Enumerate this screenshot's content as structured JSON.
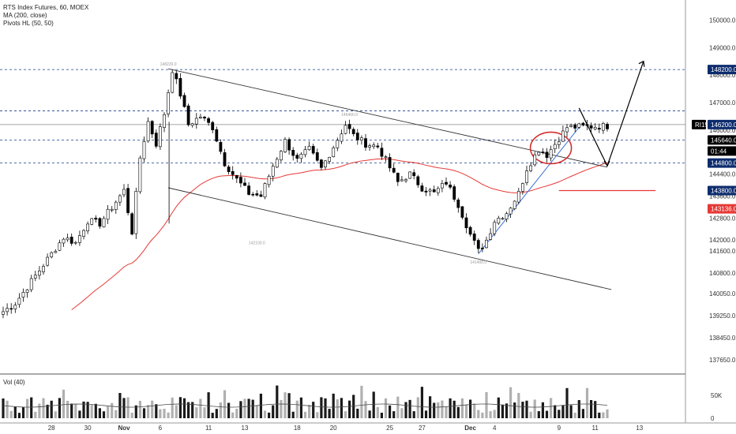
{
  "legend": {
    "symbol": "RTS Index Futures, 60, MOEX",
    "ma": "MA (200, close)",
    "pivots": "Pivots HL (50, 50)"
  },
  "volume_label": "Vol (40)",
  "colors": {
    "up": "#ffffff",
    "down": "#000000",
    "ma": "#e53935",
    "dashed": "#1a3a8c",
    "price_tag": "#0d2c6e",
    "red_tag": "#e53935",
    "trendline": "#3a6fd8"
  },
  "chart_data": {
    "type": "candlestick",
    "price_axis": {
      "ticks": [
        "150000.0",
        "149000.0",
        "148000.0",
        "147000.0",
        "146000.0",
        "145200.0",
        "144400.0",
        "143600.0",
        "142800.0",
        "142000.0",
        "141600.0",
        "140800.0",
        "140050.0",
        "139250.0",
        "138450.0",
        "137650.0"
      ],
      "range": [
        137300,
        150500
      ]
    },
    "time_axis": {
      "ticks": [
        "28",
        "30",
        "Nov",
        "6",
        "11",
        "13",
        "18",
        "20",
        "25",
        "27",
        "Dec",
        "4",
        "9",
        "11",
        "13"
      ]
    },
    "volume_axis": {
      "ticks": [
        "50K",
        "0"
      ]
    },
    "horizontal_levels": [
      148200,
      146700,
      145640,
      144800
    ],
    "price_tags": [
      {
        "label": "148200.0",
        "value": 148200,
        "style": "blue"
      },
      {
        "label": "146200.0",
        "value": 146200,
        "style": "blue"
      },
      {
        "label": "RI1!",
        "value": 146200,
        "style": "symbol"
      },
      {
        "label": "145640.0",
        "value": 145640,
        "style": "dark"
      },
      {
        "label": "01:44",
        "value": 145350,
        "style": "dark"
      },
      {
        "label": "144800.0",
        "value": 144800,
        "style": "blue"
      },
      {
        "label": "143800.0",
        "value": 143800,
        "style": "blue"
      },
      {
        "label": "143136.0",
        "value": 143136,
        "style": "red"
      }
    ],
    "pivot_labels": [
      {
        "label": "148229.0",
        "x_index": 41,
        "value": 148229,
        "pos": "above"
      },
      {
        "label": "146400.0",
        "x_index": 86,
        "value": 146400,
        "pos": "above"
      },
      {
        "label": "142100.0",
        "x_index": 63,
        "value": 142100,
        "pos": "below"
      },
      {
        "label": "141400.0",
        "x_index": 118,
        "value": 141400,
        "pos": "below"
      }
    ],
    "waypoints": [
      [
        0,
        139400
      ],
      [
        3,
        139700
      ],
      [
        6,
        140300
      ],
      [
        9,
        140900
      ],
      [
        12,
        141500
      ],
      [
        15,
        142100
      ],
      [
        18,
        141900
      ],
      [
        21,
        142700
      ],
      [
        24,
        142600
      ],
      [
        27,
        143200
      ],
      [
        30,
        143800
      ],
      [
        32,
        142300
      ],
      [
        34,
        145000
      ],
      [
        36,
        146300
      ],
      [
        38,
        145500
      ],
      [
        40,
        146600
      ],
      [
        42,
        148200
      ],
      [
        44,
        147300
      ],
      [
        46,
        146200
      ],
      [
        49,
        146500
      ],
      [
        52,
        146100
      ],
      [
        55,
        144800
      ],
      [
        58,
        144200
      ],
      [
        61,
        143700
      ],
      [
        64,
        143600
      ],
      [
        67,
        144700
      ],
      [
        70,
        145600
      ],
      [
        73,
        144900
      ],
      [
        76,
        145300
      ],
      [
        79,
        144600
      ],
      [
        82,
        145400
      ],
      [
        85,
        146200
      ],
      [
        87,
        145800
      ],
      [
        90,
        145500
      ],
      [
        93,
        145400
      ],
      [
        95,
        144900
      ],
      [
        98,
        144100
      ],
      [
        101,
        144400
      ],
      [
        104,
        143900
      ],
      [
        107,
        143700
      ],
      [
        110,
        144100
      ],
      [
        113,
        143300
      ],
      [
        116,
        142200
      ],
      [
        118,
        141600
      ],
      [
        120,
        142000
      ],
      [
        122,
        142700
      ],
      [
        125,
        143000
      ],
      [
        128,
        143700
      ],
      [
        130,
        144600
      ],
      [
        133,
        145300
      ],
      [
        135,
        145100
      ],
      [
        138,
        145700
      ],
      [
        140,
        146100
      ]
    ],
    "volume_overlay": true,
    "ma": {
      "label": "MA (200, close)"
    },
    "annotations": {
      "channel_upper": [
        [
          41,
          148229
        ],
        [
          150,
          144650
        ]
      ],
      "channel_lower": [
        [
          41,
          143900
        ],
        [
          151,
          140200
        ]
      ],
      "trendline": [
        [
          118,
          141500
        ],
        [
          143,
          146100
        ]
      ],
      "circle_center": [
        [
          136,
          145350
        ]
      ],
      "projection": [
        [
          143,
          146800
        ],
        [
          150,
          144700
        ],
        [
          159,
          148500
        ]
      ],
      "red_level": [
        [
          138,
          143800
        ],
        [
          162,
          143800
        ]
      ]
    }
  }
}
